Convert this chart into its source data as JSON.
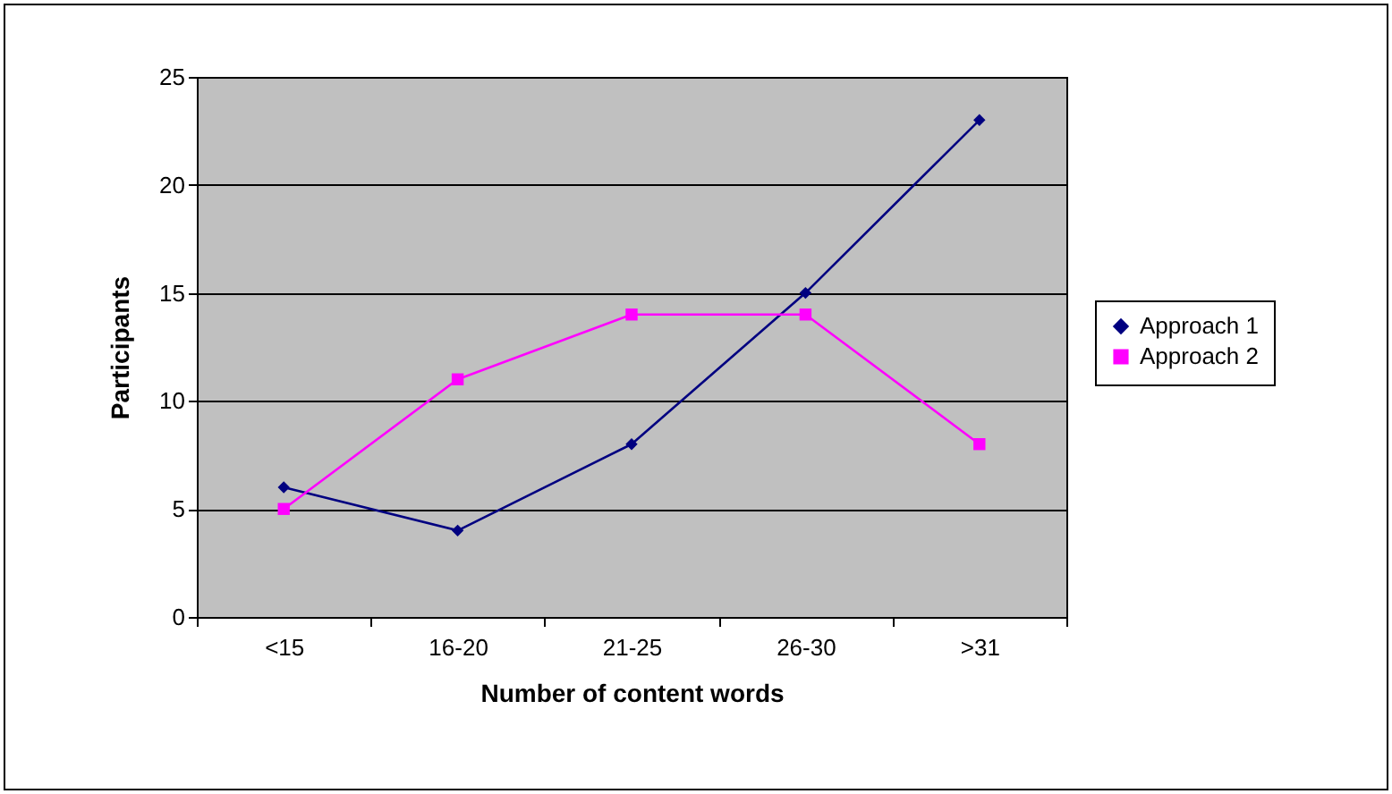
{
  "chart_data": {
    "type": "line",
    "xlabel": "Number of content words",
    "ylabel": "Participants",
    "categories": [
      "<15",
      "16-20",
      "21-25",
      "26-30",
      ">31"
    ],
    "series": [
      {
        "name": "Approach 1",
        "color": "#000080",
        "marker": "diamond",
        "values": [
          6,
          4,
          8,
          15,
          23
        ]
      },
      {
        "name": "Approach 2",
        "color": "#ff00ff",
        "marker": "square",
        "values": [
          5,
          11,
          14,
          14,
          8
        ]
      }
    ],
    "ylim": [
      0,
      25
    ],
    "yticks": [
      0,
      5,
      10,
      15,
      20,
      25
    ],
    "grid": "y",
    "legend": "right"
  }
}
